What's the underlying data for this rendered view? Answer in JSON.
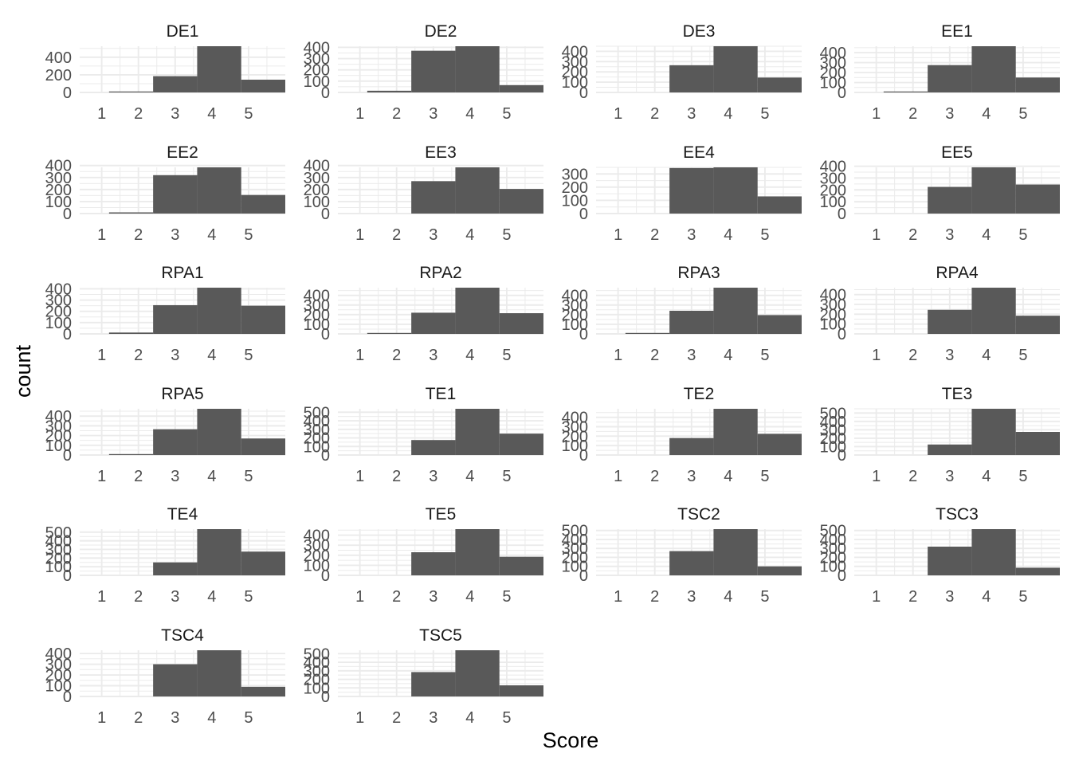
{
  "chart_data": {
    "type": "bar",
    "subtype": "faceted-histogram",
    "xlabel": "Score",
    "ylabel": "count",
    "bins": [
      1,
      2,
      3,
      4,
      5
    ],
    "x_ticks": [
      "1",
      "2",
      "3",
      "4",
      "5"
    ],
    "xlim": [
      0.4,
      6.0
    ],
    "grid": true,
    "legend": "none",
    "bar_color": "#595959",
    "panels": [
      {
        "name": "DE1",
        "values": [
          10,
          185,
          525,
          145
        ],
        "ylim": [
          0,
          525
        ],
        "y_ticks": [
          0,
          200,
          400
        ]
      },
      {
        "name": "DE2",
        "values": [
          15,
          370,
          410,
          65
        ],
        "ylim": [
          0,
          410
        ],
        "y_ticks": [
          0,
          100,
          200,
          300,
          400
        ]
      },
      {
        "name": "DE3",
        "values": [
          0,
          265,
          450,
          145
        ],
        "ylim": [
          0,
          450
        ],
        "y_ticks": [
          0,
          100,
          200,
          300,
          400
        ]
      },
      {
        "name": "EE1",
        "values": [
          8,
          275,
          465,
          150
        ],
        "ylim": [
          0,
          465
        ],
        "y_ticks": [
          0,
          100,
          200,
          300,
          400
        ]
      },
      {
        "name": "EE2",
        "values": [
          10,
          320,
          385,
          155
        ],
        "ylim": [
          0,
          385
        ],
        "y_ticks": [
          0,
          100,
          200,
          300,
          400
        ]
      },
      {
        "name": "EE3",
        "values": [
          0,
          270,
          385,
          205
        ],
        "ylim": [
          0,
          385
        ],
        "y_ticks": [
          0,
          100,
          200,
          300,
          400
        ]
      },
      {
        "name": "EE4",
        "values": [
          0,
          345,
          350,
          130
        ],
        "ylim": [
          0,
          350
        ],
        "y_ticks": [
          0,
          100,
          200,
          300
        ]
      },
      {
        "name": "EE5",
        "values": [
          0,
          225,
          390,
          245
        ],
        "ylim": [
          0,
          390
        ],
        "y_ticks": [
          0,
          100,
          200,
          300,
          400
        ]
      },
      {
        "name": "RPA1",
        "values": [
          12,
          255,
          410,
          250
        ],
        "ylim": [
          0,
          410
        ],
        "y_ticks": [
          0,
          100,
          200,
          300,
          400
        ]
      },
      {
        "name": "RPA2",
        "values": [
          10,
          220,
          480,
          215
        ],
        "ylim": [
          0,
          480
        ],
        "y_ticks": [
          0,
          100,
          200,
          300,
          400
        ]
      },
      {
        "name": "RPA3",
        "values": [
          10,
          240,
          480,
          195
        ],
        "ylim": [
          0,
          480
        ],
        "y_ticks": [
          0,
          100,
          200,
          300,
          400
        ]
      },
      {
        "name": "RPA4",
        "values": [
          0,
          245,
          470,
          185
        ],
        "ylim": [
          0,
          470
        ],
        "y_ticks": [
          0,
          100,
          200,
          300,
          400
        ]
      },
      {
        "name": "RPA5",
        "values": [
          8,
          265,
          475,
          170
        ],
        "ylim": [
          0,
          475
        ],
        "y_ticks": [
          0,
          100,
          200,
          300,
          400
        ]
      },
      {
        "name": "TE1",
        "values": [
          0,
          175,
          540,
          250
        ],
        "ylim": [
          0,
          540
        ],
        "y_ticks": [
          0,
          100,
          200,
          300,
          400,
          500
        ]
      },
      {
        "name": "TE2",
        "values": [
          0,
          180,
          490,
          225
        ],
        "ylim": [
          0,
          490
        ],
        "y_ticks": [
          0,
          100,
          200,
          300,
          400
        ]
      },
      {
        "name": "TE3",
        "values": [
          0,
          125,
          550,
          275
        ],
        "ylim": [
          0,
          550
        ],
        "y_ticks": [
          0,
          100,
          200,
          300,
          400,
          500
        ]
      },
      {
        "name": "TE4",
        "values": [
          0,
          150,
          535,
          275
        ],
        "ylim": [
          0,
          535
        ],
        "y_ticks": [
          0,
          100,
          200,
          300,
          400,
          500
        ]
      },
      {
        "name": "TE5",
        "values": [
          0,
          230,
          460,
          185
        ],
        "ylim": [
          0,
          460
        ],
        "y_ticks": [
          0,
          100,
          200,
          300,
          400
        ]
      },
      {
        "name": "TSC2",
        "values": [
          0,
          270,
          515,
          100
        ],
        "ylim": [
          0,
          515
        ],
        "y_ticks": [
          0,
          100,
          200,
          300,
          400,
          500
        ]
      },
      {
        "name": "TSC3",
        "values": [
          0,
          320,
          515,
          85
        ],
        "ylim": [
          0,
          515
        ],
        "y_ticks": [
          0,
          100,
          200,
          300,
          400,
          500
        ]
      },
      {
        "name": "TSC4",
        "values": [
          0,
          300,
          430,
          90
        ],
        "ylim": [
          0,
          430
        ],
        "y_ticks": [
          0,
          100,
          200,
          300,
          400
        ]
      },
      {
        "name": "TSC5",
        "values": [
          0,
          285,
          540,
          130
        ],
        "ylim": [
          0,
          540
        ],
        "y_ticks": [
          0,
          100,
          200,
          300,
          400,
          500
        ]
      }
    ]
  }
}
